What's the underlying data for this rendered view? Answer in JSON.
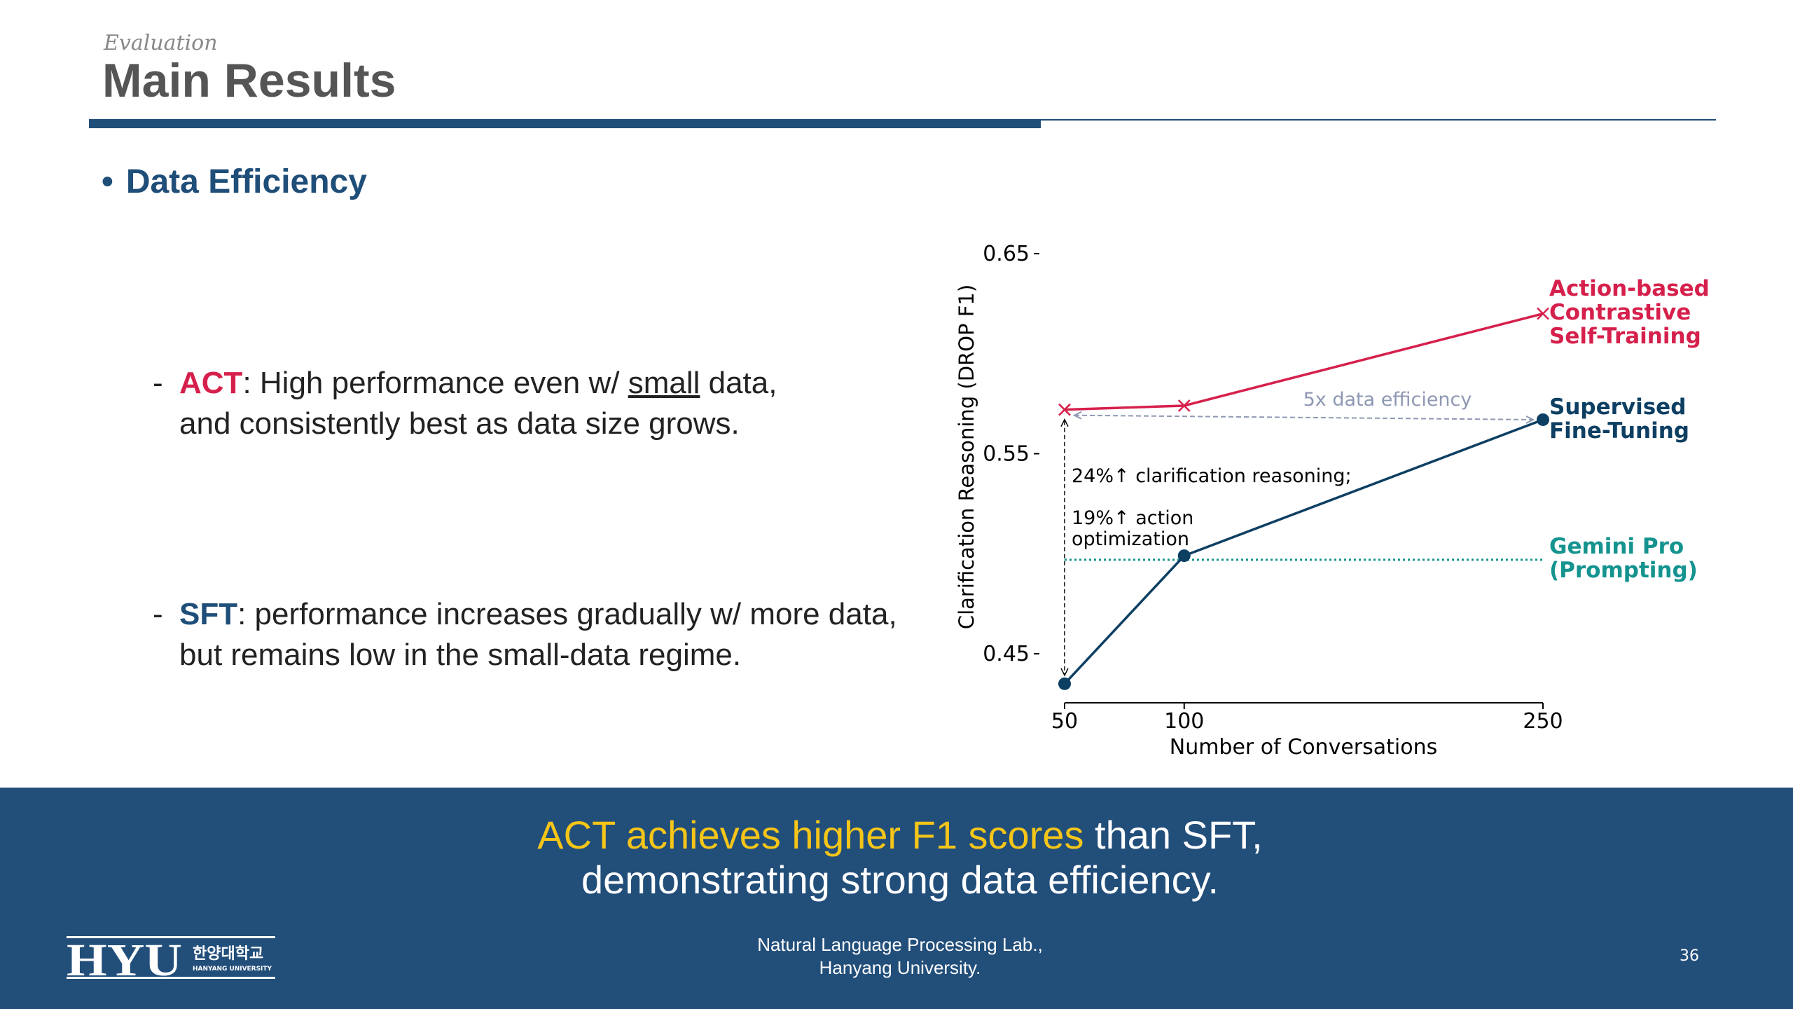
{
  "header": {
    "eyebrow": "Evaluation",
    "title": "Main Results"
  },
  "bullet": {
    "title": "Data Efficiency"
  },
  "items": [
    {
      "dash": "-",
      "term": "ACT",
      "text1": ": High performance even w/ ",
      "underlined": "small",
      "text2": " data,",
      "line2": "and consistently best as data size grows."
    },
    {
      "dash": "-",
      "term": "SFT",
      "text1": ": performance increases gradually w/ more data,",
      "line2": "but remains low in the small-data regime."
    }
  ],
  "footer": {
    "highlight": "ACT achieves higher F1 scores",
    "rest": " than SFT,",
    "line2": "demonstrating strong data efficiency.",
    "lab_line1": "Natural Language Processing Lab.,",
    "lab_line2": "Hanyang University.",
    "page": "36",
    "logo": {
      "mark": "HYU",
      "korean": "한양대학교",
      "english": "HANYANG UNIVERSITY"
    }
  },
  "colors": {
    "brand": "#1f4e79",
    "act": "#d6204c",
    "sft": "#0d3f63",
    "gemini": "#14938f",
    "highlight": "#f5c518"
  },
  "chart_data": {
    "type": "line",
    "xlabel": "Number of Conversations",
    "ylabel": "Clarification Reasoning (DROP F1)",
    "x": [
      50,
      100,
      250
    ],
    "xticks": [
      "50",
      "100",
      "250"
    ],
    "yticks": [
      "0.45",
      "0.55",
      "0.65"
    ],
    "ylim": [
      0.45,
      0.65
    ],
    "grid": false,
    "series": [
      {
        "name": "Action-based Contrastive Self-Training",
        "label_lines": [
          "Action-based",
          "Contrastive",
          "Self-Training"
        ],
        "values": [
          0.572,
          0.574,
          0.62
        ],
        "marker": "x",
        "color": "#d6204c"
      },
      {
        "name": "Supervised Fine-Tuning",
        "label_lines": [
          "Supervised",
          "Fine-Tuning"
        ],
        "values": [
          0.435,
          0.499,
          0.567
        ],
        "marker": "o",
        "color": "#0d3f63"
      },
      {
        "name": "Gemini Pro (Prompting)",
        "label_lines": [
          "Gemini Pro",
          "(Prompting)"
        ],
        "values": [
          0.497,
          0.497,
          0.497
        ],
        "style": "dotted",
        "color": "#14938f"
      }
    ],
    "annotations": {
      "efficiency": "5x data efficiency",
      "gain1": "24%↑ clarification reasoning;",
      "gain2a": "19%↑ action",
      "gain2b": "optimization"
    }
  }
}
